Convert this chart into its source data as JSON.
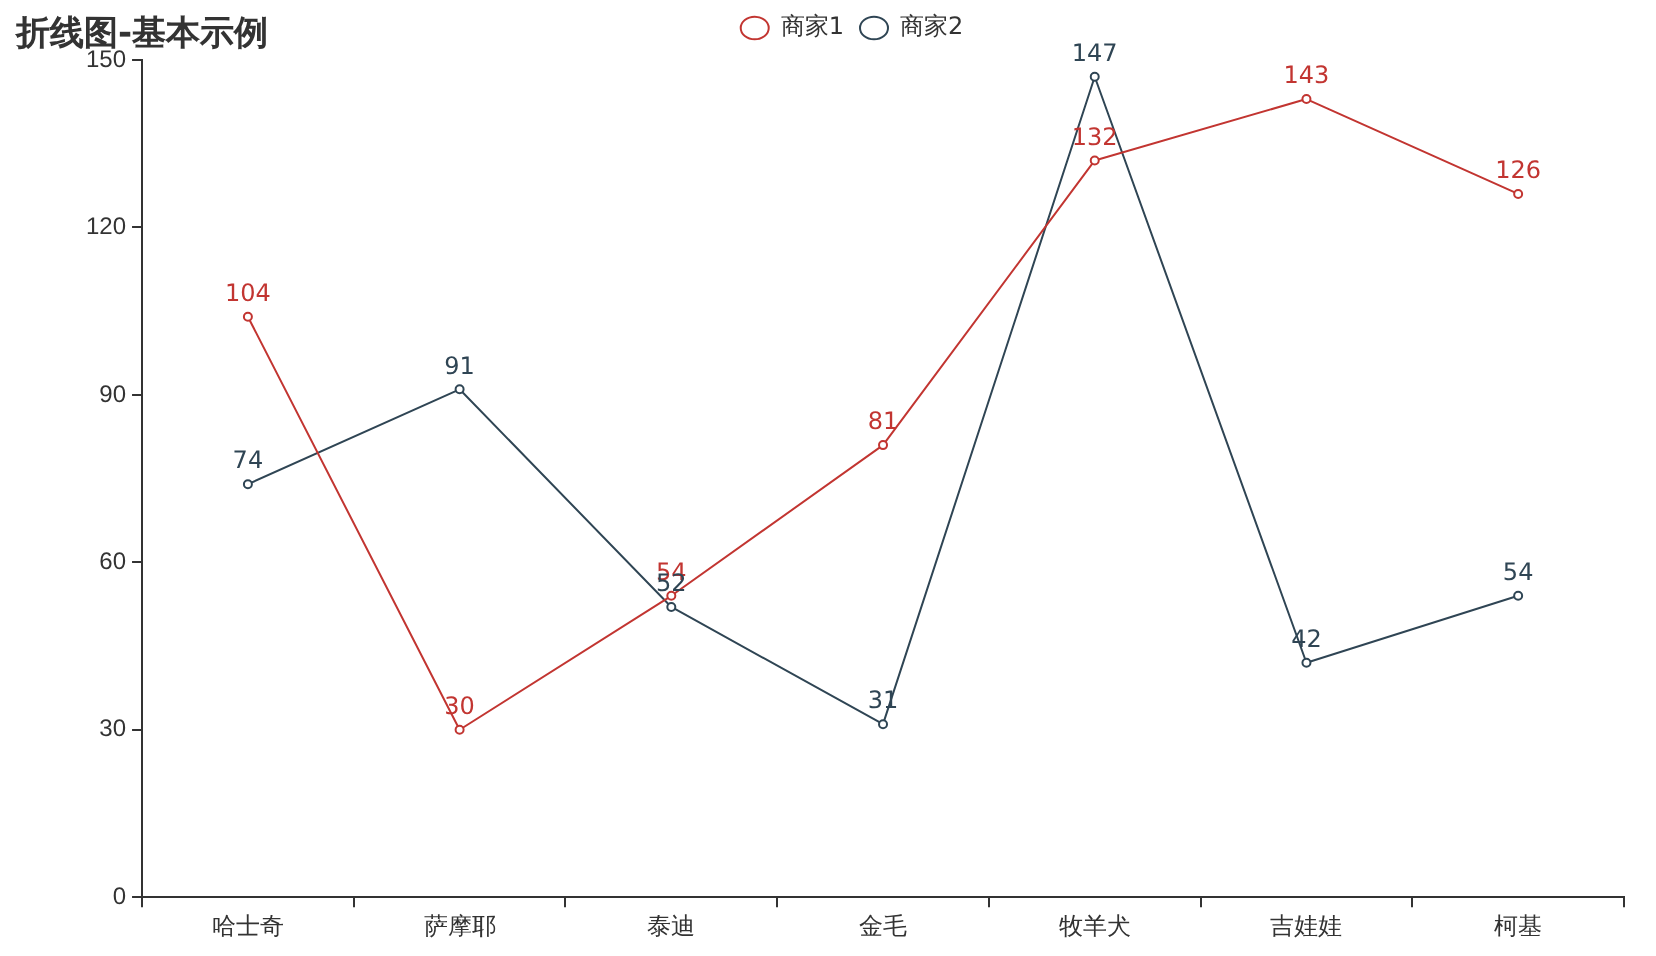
{
  "chart_data": {
    "type": "line",
    "title": "折线图-基本示例",
    "categories": [
      "哈士奇",
      "萨摩耶",
      "泰迪",
      "金毛",
      "牧羊犬",
      "吉娃娃",
      "柯基"
    ],
    "series": [
      {
        "name": "商家1",
        "color": "#c23531",
        "values": [
          104,
          30,
          54,
          81,
          132,
          143,
          126
        ]
      },
      {
        "name": "商家2",
        "color": "#2f4554",
        "values": [
          74,
          91,
          52,
          31,
          147,
          42,
          54
        ]
      }
    ],
    "ylim": [
      0,
      150
    ],
    "yticks": [
      0,
      30,
      60,
      90,
      120,
      150
    ],
    "legend": "top",
    "marker": "circle",
    "data_labels": true
  }
}
